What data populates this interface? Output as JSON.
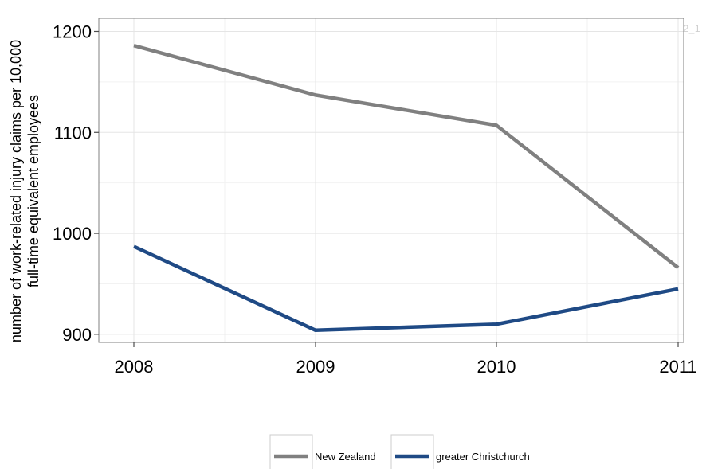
{
  "figure_id": "F_S2_1",
  "chart_data": {
    "type": "line",
    "x": [
      "2008",
      "2009",
      "2010",
      "2011"
    ],
    "series": [
      {
        "name": "New Zealand",
        "values": [
          1186,
          1137,
          1107,
          966
        ],
        "color": "#808080"
      },
      {
        "name": "greater Christchurch",
        "values": [
          987,
          904,
          910,
          945
        ],
        "color": "#1f4a85"
      }
    ],
    "title": "",
    "xlabel": "",
    "ylabel": [
      "number of work-related injury claims per 10,000",
      "full-time equivalent employees"
    ],
    "yticks": [
      900,
      1000,
      1100,
      1200
    ],
    "ylim": [
      892,
      1213
    ],
    "grid": true,
    "legend_position": "bottom"
  }
}
